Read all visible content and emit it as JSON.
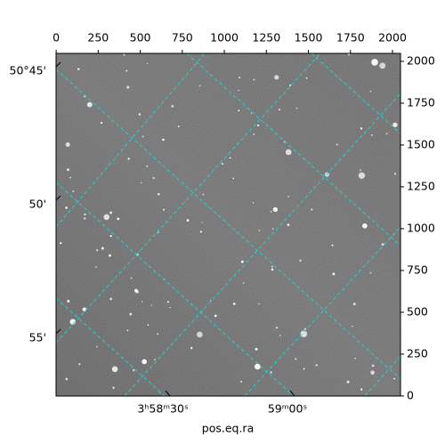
{
  "chart_data": {
    "type": "image",
    "xlabel": "pos.eq.ra",
    "xlim": [
      -0.5,
      2047.5
    ],
    "ylim": [
      -0.5,
      2047.5
    ],
    "xticks": [
      0,
      250,
      500,
      750,
      1000,
      1250,
      1500,
      1750,
      2000
    ],
    "yticks": [
      0,
      250,
      500,
      750,
      1000,
      1250,
      1500,
      1750,
      2000
    ],
    "ra_tick_labels": [
      "3ʰ58ᵐ30ˢ",
      "59ᵐ00ˢ"
    ],
    "dec_tick_labels": [
      "50°45'",
      "50'",
      "55'"
    ],
    "grid_color": "#22d3d3"
  }
}
